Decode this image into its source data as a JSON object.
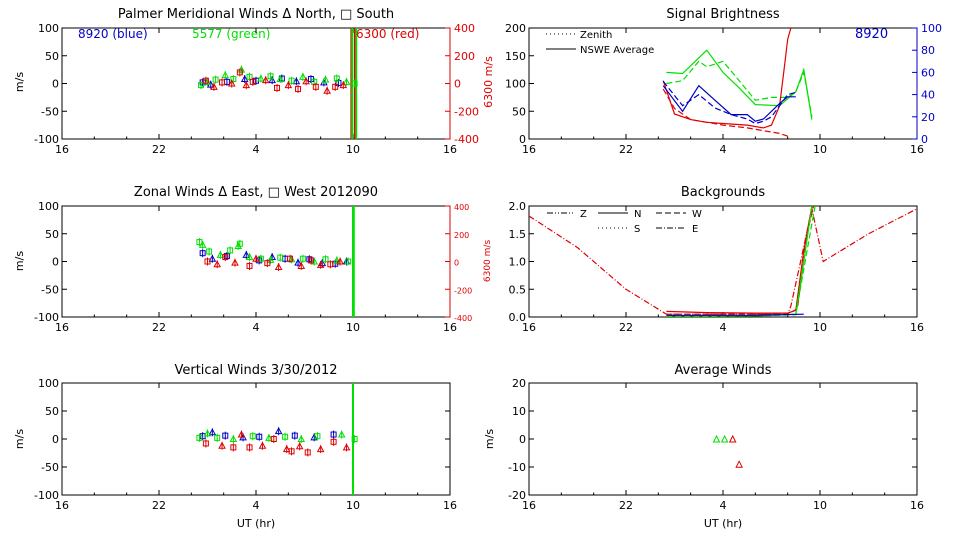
{
  "colors": {
    "axis": "#000000",
    "red": "#e00000",
    "green": "#00e000",
    "blue": "#0000c8"
  },
  "time_labels": [
    "16",
    "22",
    "4",
    "10",
    "16"
  ],
  "x_axis_label": "UT (hr)",
  "chart_data": [
    {
      "id": "meridional",
      "type": "scatter",
      "title": "Palmer Meridional Winds Δ North, □ South",
      "ylabel": "m/s",
      "y2label": "6300 m/s",
      "ylim": [
        -100,
        100
      ],
      "y2lim": [
        -400,
        400
      ],
      "yticks": [
        "100",
        "50",
        "0",
        "-50",
        "-100"
      ],
      "y2ticks": [
        "400",
        "200",
        "0",
        "-200",
        "-400"
      ],
      "legend": {
        "blue": "8920 (blue)",
        "green": "5577 (green)",
        "red": "6300 (red)"
      },
      "vlines": [
        {
          "x": 9.9,
          "color": "red"
        },
        {
          "x": 10.2,
          "color": "green"
        },
        {
          "x": 9.95,
          "color": "green"
        }
      ],
      "red_excursion": {
        "x": 10.1,
        "y_top": 100
      },
      "series": [
        {
          "name": "8920",
          "color": "blue",
          "x": [
            0.7,
            1.2,
            2.2,
            3.3,
            4.0,
            5.0,
            5.6,
            6.5,
            7.4,
            8.2,
            9.1
          ],
          "y": [
            2,
            -2,
            3,
            8,
            5,
            6,
            9,
            4,
            8,
            2,
            1
          ]
        },
        {
          "name": "5577",
          "color": "green",
          "x": [
            0.6,
            1.0,
            1.5,
            2.1,
            2.6,
            3.1,
            3.6,
            4.3,
            4.9,
            5.5,
            6.2,
            6.9,
            7.6,
            8.3,
            9.0,
            9.6,
            10.1
          ],
          "y": [
            -3,
            3,
            7,
            15,
            8,
            25,
            12,
            9,
            13,
            8,
            5,
            12,
            3,
            7,
            9,
            3,
            0
          ]
        },
        {
          "name": "6300",
          "color": "red",
          "x": [
            0.9,
            1.4,
            1.9,
            2.5,
            3.0,
            3.4,
            3.8,
            4.6,
            5.3,
            6.0,
            6.6,
            7.1,
            7.7,
            8.4,
            8.9,
            9.4
          ],
          "y": [
            5,
            -6,
            2,
            0,
            20,
            -3,
            3,
            6,
            -8,
            -3,
            -10,
            4,
            -6,
            -13,
            -6,
            -3
          ]
        }
      ]
    },
    {
      "id": "zonal",
      "type": "scatter",
      "title": "Zonal Winds Δ East, □ West 2012090",
      "ylabel": "m/s",
      "y2label": "6300 m/s",
      "ylim": [
        -100,
        100
      ],
      "y2lim": [
        -400,
        400
      ],
      "yticks": [
        "100",
        "50",
        "0",
        "-50",
        "-100"
      ],
      "y2ticks": [
        "400",
        "200",
        "0",
        "-200",
        "-400"
      ],
      "vlines": [
        {
          "x": 10.0,
          "color": "green"
        },
        {
          "x": 10.05,
          "color": "green"
        }
      ],
      "series": [
        {
          "name": "8920",
          "color": "blue",
          "x": [
            0.7,
            1.3,
            2.2,
            3.4,
            4.2,
            5.0,
            5.8,
            6.6,
            7.3,
            8.1,
            8.9,
            9.6
          ],
          "y": [
            15,
            5,
            10,
            12,
            2,
            8,
            5,
            -2,
            4,
            -3,
            -4,
            0
          ]
        },
        {
          "name": "5577",
          "color": "green",
          "x": [
            0.5,
            0.7,
            1.1,
            1.8,
            2.4,
            2.9,
            3.0,
            3.6,
            4.3,
            4.9,
            5.5,
            6.2,
            6.9,
            7.6,
            8.3,
            9.0,
            9.7
          ],
          "y": [
            35,
            30,
            18,
            12,
            20,
            28,
            32,
            8,
            5,
            3,
            7,
            4,
            5,
            0,
            4,
            2,
            0
          ]
        },
        {
          "name": "6300",
          "color": "red",
          "x": [
            1.0,
            1.6,
            2.1,
            2.7,
            3.6,
            4.0,
            4.7,
            5.4,
            6.1,
            6.8,
            7.4,
            8.0,
            8.6,
            9.2
          ],
          "y": [
            0,
            -5,
            8,
            -2,
            -8,
            5,
            -3,
            -10,
            5,
            -8,
            2,
            -6,
            -5,
            0
          ]
        }
      ]
    },
    {
      "id": "vertical",
      "type": "scatter",
      "title": "Vertical Winds 3/30/2012",
      "ylabel": "m/s",
      "ylim": [
        -100,
        100
      ],
      "yticks": [
        "100",
        "50",
        "0",
        "-50",
        "-100"
      ],
      "vlines": [
        {
          "x": 10.0,
          "color": "green"
        }
      ],
      "series": [
        {
          "name": "8920",
          "color": "blue",
          "x": [
            0.7,
            1.3,
            2.1,
            3.2,
            4.2,
            5.4,
            6.4,
            7.6,
            8.8
          ],
          "y": [
            5,
            12,
            6,
            3,
            4,
            14,
            6,
            3,
            8
          ]
        },
        {
          "name": "5577",
          "color": "green",
          "x": [
            0.5,
            1.0,
            1.6,
            2.6,
            3.8,
            4.8,
            5.8,
            6.8,
            7.8,
            9.3,
            10.1
          ],
          "y": [
            2,
            10,
            2,
            0,
            5,
            2,
            4,
            0,
            5,
            8,
            0
          ]
        },
        {
          "name": "6300",
          "color": "red",
          "x": [
            0.9,
            1.9,
            2.6,
            3.1,
            3.6,
            4.4,
            5.1,
            5.9,
            6.2,
            6.7,
            7.2,
            8.0,
            8.8,
            9.6
          ],
          "y": [
            -8,
            -12,
            -15,
            8,
            -15,
            -12,
            0,
            -18,
            -22,
            -13,
            -24,
            -18,
            -5,
            -15
          ]
        }
      ]
    },
    {
      "id": "signal",
      "type": "line",
      "title": "Signal Brightness",
      "ylim": [
        0,
        200
      ],
      "y2lim": [
        0,
        100
      ],
      "yticks": [
        "200",
        "150",
        "100",
        "50",
        "0"
      ],
      "y2ticks": [
        "100",
        "80",
        "60",
        "40",
        "20",
        "0"
      ],
      "station_label": "8920",
      "legend": [
        {
          "label": "Zenith",
          "style": "dotted"
        },
        {
          "label": "NSWE Average",
          "style": "solid"
        }
      ],
      "series": [
        {
          "name": "green solid",
          "color": "green",
          "style": "solid",
          "x": [
            0.5,
            1.5,
            3.0,
            4.0,
            5.0,
            6.0,
            7.5,
            8.5,
            9.0,
            9.5
          ],
          "y": [
            120,
            118,
            160,
            120,
            92,
            62,
            60,
            85,
            125,
            35
          ]
        },
        {
          "name": "green dashed",
          "color": "green",
          "style": "dashed",
          "x": [
            0.5,
            1.5,
            2.5,
            3.0,
            4.0,
            5.0,
            6.0,
            7.0,
            8.0,
            8.5,
            9.0,
            9.5
          ],
          "y": [
            100,
            105,
            140,
            130,
            140,
            105,
            70,
            75,
            75,
            85,
            120,
            40
          ]
        },
        {
          "name": "red solid",
          "color": "red",
          "style": "solid",
          "x": [
            0.3,
            1.0,
            2.0,
            3.0,
            4.0,
            5.5,
            6.5,
            7.0,
            7.5,
            7.8,
            8.0,
            8.2
          ],
          "y": [
            105,
            45,
            35,
            30,
            28,
            25,
            20,
            25,
            60,
            130,
            180,
            200
          ]
        },
        {
          "name": "red dashed",
          "color": "red",
          "style": "dashed",
          "x": [
            0.3,
            1.0,
            2.0,
            3.0,
            4.0,
            5.5,
            6.5,
            7.5,
            8.0
          ],
          "y": [
            90,
            55,
            35,
            30,
            25,
            20,
            15,
            10,
            5
          ]
        },
        {
          "name": "blue solid",
          "color": "blue",
          "style": "solid",
          "x": [
            0.3,
            1.5,
            2.5,
            3.5,
            4.5,
            5.5,
            6.0,
            6.5,
            7.0,
            7.5,
            8.0,
            8.5
          ],
          "y": [
            48,
            25,
            48,
            35,
            22,
            22,
            16,
            18,
            25,
            32,
            38,
            38
          ]
        },
        {
          "name": "blue dashed",
          "color": "blue",
          "style": "dashed",
          "x": [
            0.3,
            1.5,
            2.5,
            3.5,
            4.5,
            5.5,
            6.0,
            6.5,
            7.0,
            7.5,
            8.0,
            8.5
          ],
          "y": [
            52,
            30,
            40,
            28,
            22,
            18,
            14,
            16,
            20,
            30,
            40,
            42
          ]
        }
      ]
    },
    {
      "id": "backgrounds",
      "type": "line",
      "title": "Backgrounds",
      "ylim": [
        0,
        2.0
      ],
      "yticks": [
        "2.0",
        "1.5",
        "1.0",
        "0.5",
        "0.0"
      ],
      "legend": [
        {
          "label": "Z",
          "style": "dashdotdot"
        },
        {
          "label": "N",
          "style": "solid"
        },
        {
          "label": "W",
          "style": "dashed"
        },
        {
          "label": "S",
          "style": "dotted"
        },
        {
          "label": "E",
          "style": "dashdot"
        }
      ],
      "series": [
        {
          "name": "red dashdot",
          "color": "red",
          "style": "dashdot",
          "x": [
            -8.0,
            -5.0,
            -2.0,
            0.5,
            4.0,
            7.5,
            8.0,
            8.2,
            8.8,
            9.5,
            10.2,
            13.0,
            16.0
          ],
          "y": [
            1.82,
            1.25,
            0.5,
            0.05,
            0.05,
            0.05,
            0.05,
            0.2,
            1.0,
            1.95,
            1.0,
            1.5,
            1.95
          ]
        },
        {
          "name": "red solid",
          "color": "red",
          "style": "solid",
          "x": [
            0.5,
            3.0,
            6.0,
            8.0,
            8.5,
            9.0,
            9.5
          ],
          "y": [
            0.1,
            0.08,
            0.07,
            0.07,
            0.12,
            1.2,
            2.0
          ]
        },
        {
          "name": "red dashed",
          "color": "red",
          "style": "dashed",
          "x": [
            0.5,
            3.0,
            6.0,
            8.0,
            8.6,
            9.2,
            9.6
          ],
          "y": [
            0.05,
            0.05,
            0.05,
            0.05,
            0.15,
            1.5,
            2.0
          ]
        },
        {
          "name": "green solid",
          "color": "green",
          "style": "solid",
          "x": [
            0.5,
            3.0,
            6.0,
            8.5,
            9.0,
            9.5
          ],
          "y": [
            0.02,
            0.02,
            0.02,
            0.05,
            1.0,
            2.0
          ]
        },
        {
          "name": "green dashed",
          "color": "green",
          "style": "dashed",
          "x": [
            0.5,
            3.0,
            6.0,
            8.5,
            9.2,
            9.7
          ],
          "y": [
            0.01,
            0.01,
            0.02,
            0.04,
            1.2,
            2.0
          ]
        },
        {
          "name": "blue solid",
          "color": "blue",
          "style": "solid",
          "x": [
            0.5,
            3.0,
            6.0,
            9.0
          ],
          "y": [
            0.03,
            0.03,
            0.03,
            0.05
          ]
        }
      ]
    },
    {
      "id": "average",
      "type": "scatter",
      "title": "Average Winds",
      "ylabel": "m/s",
      "ylim": [
        -20,
        20
      ],
      "yticks": [
        "20",
        "10",
        "0",
        "-10",
        "-20"
      ],
      "series": [
        {
          "name": "green",
          "color": "green",
          "x": [
            3.6,
            4.1
          ],
          "y": [
            0,
            0
          ]
        },
        {
          "name": "red",
          "color": "red",
          "x": [
            4.6,
            5.0
          ],
          "y": [
            0,
            -9
          ]
        }
      ]
    }
  ]
}
